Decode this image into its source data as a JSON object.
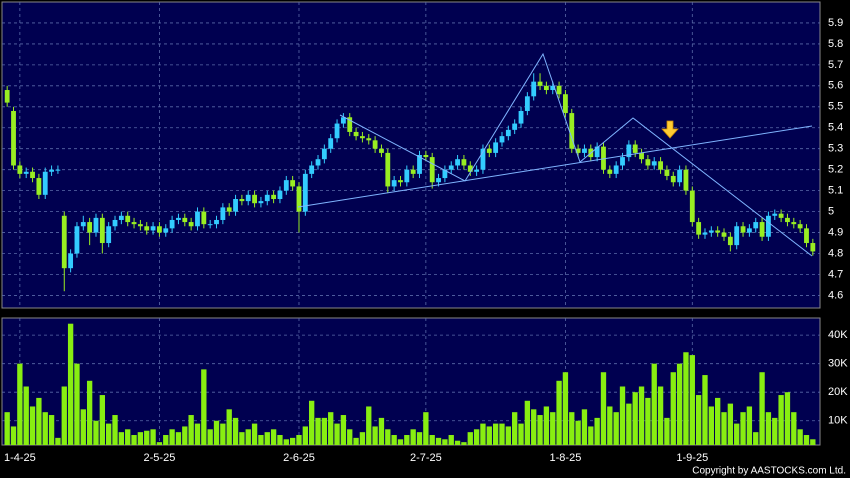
{
  "chart_data": [
    {
      "type": "candlestick",
      "up_color": "#33ccff",
      "down_color": "#99ee22",
      "grid": true,
      "ylim": [
        4.54,
        6.0
      ],
      "yticks": [
        5.9,
        5.8,
        5.7,
        5.6,
        5.5,
        5.4,
        5.3,
        5.2,
        5.1,
        5,
        4.9,
        4.8,
        4.7,
        4.6
      ],
      "open": [
        5.58,
        5.48,
        5.22,
        5.18,
        5.19,
        5.16,
        5.08,
        5.19,
        5.2,
        4.98,
        4.73,
        4.8,
        4.93,
        4.95,
        4.9,
        4.97,
        4.85,
        4.93,
        4.96,
        4.98,
        4.95,
        4.94,
        4.93,
        4.91,
        4.93,
        4.9,
        4.92,
        4.96,
        4.97,
        4.95,
        4.93,
        5.0,
        4.94,
        4.94,
        4.96,
        5.02,
        5.0,
        5.06,
        5.05,
        5.08,
        5.04,
        5.05,
        5.08,
        5.06,
        5.1,
        5.15,
        5.12,
        5.0,
        5.18,
        5.22,
        5.25,
        5.3,
        5.35,
        5.42,
        5.45,
        5.38,
        5.36,
        5.35,
        5.34,
        5.3,
        5.28,
        5.12,
        5.15,
        5.14,
        5.2,
        5.18,
        5.27,
        5.26,
        5.14,
        5.16,
        5.2,
        5.22,
        5.25,
        5.22,
        5.19,
        5.2,
        5.3,
        5.28,
        5.33,
        5.36,
        5.39,
        5.42,
        5.48,
        5.55,
        5.62,
        5.6,
        5.58,
        5.6,
        5.56,
        5.47,
        5.3,
        5.28,
        5.3,
        5.26,
        5.31,
        5.2,
        5.18,
        5.22,
        5.26,
        5.32,
        5.28,
        5.25,
        5.22,
        5.24,
        5.2,
        5.17,
        5.14,
        5.2,
        5.1,
        4.95,
        4.89,
        4.9,
        4.91,
        4.9,
        4.88,
        4.84,
        4.93,
        4.9,
        4.92,
        4.95,
        4.88,
        4.98,
        4.99,
        4.97,
        4.95,
        4.94,
        4.92,
        4.85
      ],
      "high": [
        5.6,
        5.5,
        5.24,
        5.21,
        5.21,
        5.18,
        5.21,
        5.22,
        5.22,
        5.0,
        4.82,
        4.95,
        4.98,
        4.97,
        4.99,
        4.99,
        4.95,
        4.98,
        5.0,
        5.0,
        4.97,
        4.96,
        4.95,
        4.95,
        4.95,
        4.94,
        4.98,
        4.99,
        4.99,
        4.97,
        5.02,
        5.02,
        4.96,
        4.98,
        5.04,
        5.04,
        5.08,
        5.08,
        5.1,
        5.1,
        5.07,
        5.1,
        5.1,
        5.12,
        5.17,
        5.17,
        5.14,
        5.2,
        5.24,
        5.27,
        5.32,
        5.37,
        5.44,
        5.47,
        5.47,
        5.4,
        5.38,
        5.37,
        5.36,
        5.32,
        5.3,
        5.17,
        5.17,
        5.22,
        5.22,
        5.29,
        5.29,
        5.28,
        5.18,
        5.22,
        5.24,
        5.27,
        5.27,
        5.24,
        5.22,
        5.32,
        5.32,
        5.35,
        5.38,
        5.41,
        5.44,
        5.5,
        5.57,
        5.66,
        5.66,
        5.62,
        5.62,
        5.62,
        5.58,
        5.49,
        5.32,
        5.32,
        5.32,
        5.33,
        5.33,
        5.22,
        5.24,
        5.28,
        5.34,
        5.34,
        5.3,
        5.27,
        5.26,
        5.26,
        5.22,
        5.19,
        5.22,
        5.22,
        5.12,
        4.97,
        4.92,
        4.93,
        4.93,
        4.92,
        4.9,
        4.95,
        4.95,
        4.94,
        4.97,
        4.97,
        5.0,
        5.01,
        5.01,
        4.99,
        4.97,
        4.96,
        4.94,
        4.87
      ],
      "low": [
        5.5,
        5.2,
        5.16,
        5.16,
        5.14,
        5.06,
        5.06,
        5.17,
        5.18,
        4.62,
        4.71,
        4.78,
        4.91,
        4.84,
        4.88,
        4.8,
        4.83,
        4.91,
        4.94,
        4.93,
        4.92,
        4.91,
        4.89,
        4.89,
        4.88,
        4.88,
        4.9,
        4.94,
        4.93,
        4.91,
        4.91,
        4.92,
        4.92,
        4.92,
        4.94,
        4.98,
        4.98,
        5.03,
        5.03,
        5.02,
        5.02,
        5.03,
        5.04,
        5.04,
        5.08,
        5.1,
        4.9,
        4.98,
        5.16,
        5.2,
        5.23,
        5.28,
        5.33,
        5.4,
        5.36,
        5.34,
        5.33,
        5.32,
        5.28,
        5.26,
        5.09,
        5.1,
        5.12,
        5.12,
        5.16,
        5.16,
        5.24,
        5.11,
        5.12,
        5.14,
        5.18,
        5.2,
        5.2,
        5.17,
        5.17,
        5.18,
        5.26,
        5.26,
        5.31,
        5.34,
        5.37,
        5.4,
        5.46,
        5.53,
        5.58,
        5.56,
        5.56,
        5.54,
        5.45,
        5.28,
        5.26,
        5.26,
        5.24,
        5.24,
        5.18,
        5.16,
        5.16,
        5.2,
        5.24,
        5.26,
        5.23,
        5.2,
        5.2,
        5.18,
        5.15,
        5.12,
        5.12,
        5.08,
        4.93,
        4.87,
        4.87,
        4.88,
        4.88,
        4.86,
        4.81,
        4.82,
        4.88,
        4.88,
        4.9,
        4.86,
        4.86,
        4.96,
        4.95,
        4.93,
        4.92,
        4.9,
        4.83,
        4.79
      ],
      "close": [
        5.52,
        5.22,
        5.18,
        5.19,
        5.16,
        5.08,
        5.19,
        5.2,
        5.2,
        4.73,
        4.8,
        4.93,
        4.95,
        4.9,
        4.97,
        4.85,
        4.93,
        4.96,
        4.98,
        4.95,
        4.94,
        4.93,
        4.91,
        4.93,
        4.9,
        4.92,
        4.96,
        4.97,
        4.95,
        4.93,
        5.0,
        4.94,
        4.94,
        4.96,
        5.02,
        5.0,
        5.06,
        5.05,
        5.08,
        5.04,
        5.05,
        5.08,
        5.06,
        5.1,
        5.15,
        5.12,
        5.0,
        5.18,
        5.22,
        5.25,
        5.3,
        5.35,
        5.42,
        5.45,
        5.38,
        5.36,
        5.35,
        5.34,
        5.3,
        5.28,
        5.12,
        5.15,
        5.14,
        5.2,
        5.18,
        5.27,
        5.26,
        5.14,
        5.16,
        5.2,
        5.22,
        5.25,
        5.22,
        5.19,
        5.2,
        5.3,
        5.28,
        5.33,
        5.36,
        5.39,
        5.42,
        5.48,
        5.55,
        5.62,
        5.6,
        5.58,
        5.6,
        5.56,
        5.47,
        5.3,
        5.28,
        5.3,
        5.26,
        5.31,
        5.2,
        5.18,
        5.22,
        5.26,
        5.32,
        5.28,
        5.25,
        5.22,
        5.24,
        5.2,
        5.17,
        5.14,
        5.2,
        5.1,
        4.95,
        4.89,
        4.9,
        4.91,
        4.9,
        4.88,
        4.84,
        4.93,
        4.9,
        4.92,
        4.95,
        4.88,
        4.98,
        4.99,
        4.97,
        4.95,
        4.94,
        4.92,
        4.85,
        4.81
      ]
    },
    {
      "type": "bar",
      "color": "#88ee11",
      "grid": true,
      "ylim": [
        1500,
        46000
      ],
      "yticks": [
        {
          "value": 40000,
          "label": "40K"
        },
        {
          "value": 30000,
          "label": "30K"
        },
        {
          "value": 20000,
          "label": "20K"
        },
        {
          "value": 10000,
          "label": "10K"
        }
      ],
      "categories": [
        null,
        null,
        "1-4-25",
        null,
        null,
        null,
        null,
        null,
        null,
        null,
        null,
        null,
        null,
        null,
        null,
        null,
        null,
        null,
        null,
        null,
        null,
        null,
        null,
        null,
        "2-5-25",
        null,
        null,
        null,
        null,
        null,
        null,
        null,
        null,
        null,
        null,
        null,
        null,
        null,
        null,
        null,
        null,
        null,
        null,
        null,
        null,
        null,
        "2-6-25",
        null,
        null,
        null,
        null,
        null,
        null,
        null,
        null,
        null,
        null,
        null,
        null,
        null,
        null,
        null,
        null,
        null,
        null,
        null,
        "2-7-25",
        null,
        null,
        null,
        null,
        null,
        null,
        null,
        null,
        null,
        null,
        null,
        null,
        null,
        null,
        null,
        null,
        null,
        null,
        null,
        null,
        null,
        "1-8-25",
        null,
        null,
        null,
        null,
        null,
        null,
        null,
        null,
        null,
        null,
        null,
        null,
        null,
        null,
        null,
        null,
        null,
        null,
        null,
        "1-9-25",
        null,
        null,
        null,
        null,
        null,
        null,
        null,
        null,
        null,
        null,
        null,
        null,
        null,
        null,
        null,
        null,
        null,
        null,
        null
      ],
      "values": [
        13000,
        8000,
        30000,
        22000,
        15000,
        18000,
        13000,
        12000,
        4000,
        22000,
        44000,
        30000,
        14000,
        24000,
        10000,
        19000,
        9000,
        12000,
        6000,
        7000,
        5000,
        6000,
        6500,
        7000,
        2500,
        5000,
        7000,
        6000,
        8000,
        12000,
        9000,
        28000,
        7000,
        10000,
        9000,
        14000,
        11000,
        6000,
        7000,
        9000,
        5000,
        6000,
        7000,
        5000,
        3500,
        4000,
        5000,
        8000,
        17000,
        11000,
        11000,
        13000,
        9000,
        12000,
        7000,
        4000,
        6000,
        15000,
        8000,
        11000,
        7000,
        5000,
        3500,
        5000,
        7000,
        6000,
        13000,
        5000,
        4000,
        3500,
        5000,
        3000,
        2500,
        6000,
        7000,
        9000,
        8000,
        9000,
        9000,
        8000,
        13000,
        9000,
        17000,
        14000,
        12000,
        15000,
        13000,
        24000,
        27000,
        13000,
        10000,
        14000,
        8000,
        11000,
        27000,
        15000,
        13000,
        22000,
        16000,
        20000,
        22000,
        18000,
        30000,
        22000,
        11000,
        27000,
        30000,
        34000,
        33000,
        19000,
        26000,
        15000,
        18000,
        13000,
        16000,
        9000,
        13000,
        15000,
        6000,
        27000,
        13000,
        11000,
        19000,
        20000,
        13000,
        7000,
        5000,
        3500
      ]
    }
  ],
  "copyright": "Copyright by AASTOCKS.com Ltd."
}
